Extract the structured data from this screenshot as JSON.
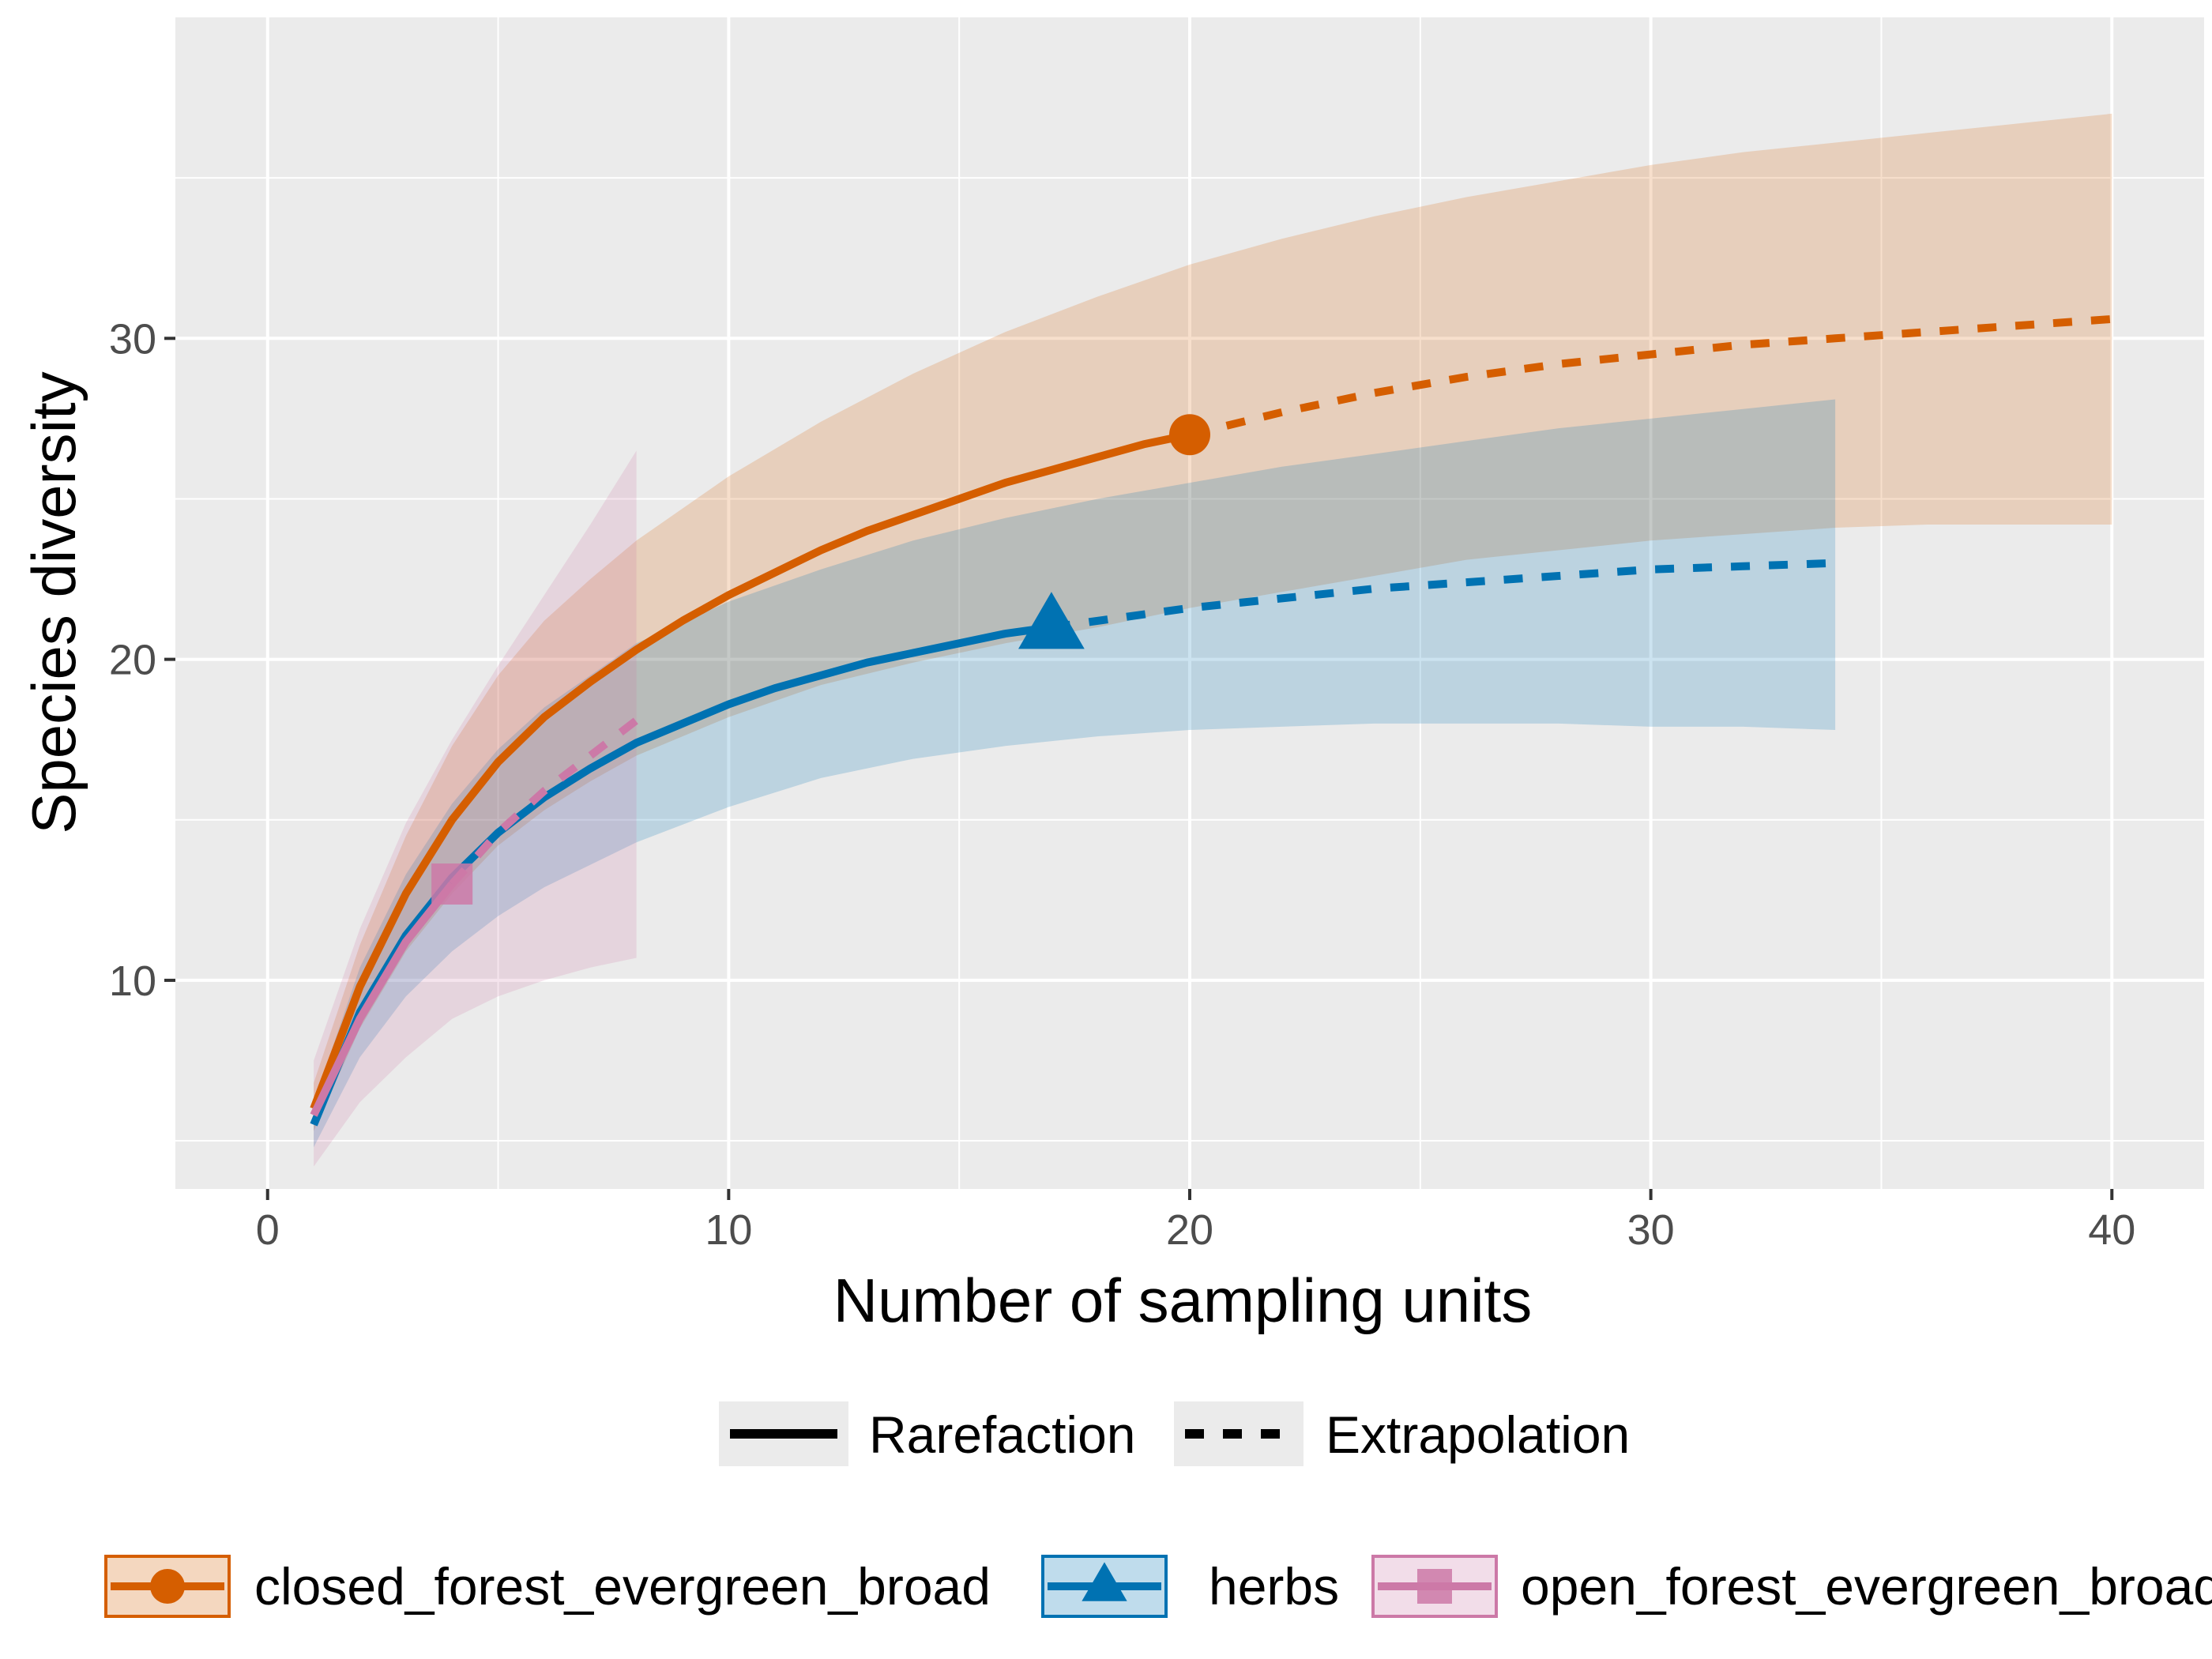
{
  "chart_data": {
    "type": "line",
    "title": "",
    "xlabel": "Number of sampling units",
    "ylabel": "Species diversity",
    "xlim": [
      -2,
      42
    ],
    "ylim": [
      3.5,
      40
    ],
    "x_ticks": [
      0,
      10,
      20,
      30,
      40
    ],
    "y_ticks": [
      10,
      20,
      30
    ],
    "grid": true,
    "panel_background": "#ebebeb",
    "legend_position": "bottom",
    "linetype_legend": [
      {
        "label": "Rarefaction",
        "linetype": "solid"
      },
      {
        "label": "Extrapolation",
        "linetype": "dashed"
      }
    ],
    "series": [
      {
        "name": "closed_forest_evergreen_broad",
        "color": "#D55E00",
        "shape": "circle",
        "reference": {
          "x": 20,
          "y": 27
        },
        "rarefaction": {
          "x": [
            1,
            2,
            3,
            4,
            5,
            6,
            7,
            8,
            9,
            10,
            11,
            12,
            13,
            14,
            15,
            16,
            17,
            18,
            19,
            20
          ],
          "y": [
            6.0,
            9.8,
            12.7,
            15.0,
            16.8,
            18.2,
            19.3,
            20.3,
            21.2,
            22.0,
            22.7,
            23.4,
            24.0,
            24.5,
            25.0,
            25.5,
            25.9,
            26.3,
            26.7,
            27.0
          ]
        },
        "extrapolation": {
          "x": [
            20,
            22,
            24,
            26,
            28,
            30,
            32,
            34,
            36,
            38,
            40
          ],
          "y": [
            27.0,
            27.7,
            28.3,
            28.8,
            29.2,
            29.5,
            29.8,
            30.0,
            30.2,
            30.4,
            30.6
          ]
        },
        "ci_x": [
          1,
          2,
          3,
          4,
          5,
          6,
          7,
          8,
          10,
          12,
          14,
          16,
          18,
          20,
          22,
          24,
          26,
          28,
          30,
          32,
          34,
          36,
          38,
          40
        ],
        "ci_lower": [
          5.3,
          8.5,
          10.9,
          12.7,
          14.2,
          15.3,
          16.2,
          17.0,
          18.2,
          19.2,
          19.9,
          20.5,
          21.0,
          21.6,
          22.1,
          22.6,
          23.1,
          23.4,
          23.7,
          23.9,
          24.1,
          24.2,
          24.2,
          24.2
        ],
        "ci_upper": [
          6.8,
          11.1,
          14.5,
          17.3,
          19.5,
          21.2,
          22.5,
          23.7,
          25.7,
          27.4,
          28.9,
          30.2,
          31.3,
          32.3,
          33.1,
          33.8,
          34.4,
          34.9,
          35.4,
          35.8,
          36.1,
          36.4,
          36.7,
          37.0
        ]
      },
      {
        "name": "herbs",
        "color": "#0072B2",
        "shape": "triangle",
        "reference": {
          "x": 17,
          "y": 21
        },
        "rarefaction": {
          "x": [
            1,
            2,
            3,
            4,
            5,
            6,
            7,
            8,
            9,
            10,
            11,
            12,
            13,
            14,
            15,
            16,
            17
          ],
          "y": [
            5.5,
            9.0,
            11.4,
            13.2,
            14.6,
            15.7,
            16.6,
            17.4,
            18.0,
            18.6,
            19.1,
            19.5,
            19.9,
            20.2,
            20.5,
            20.8,
            21.0
          ]
        },
        "extrapolation": {
          "x": [
            17,
            20,
            22,
            24,
            26,
            28,
            30,
            32,
            34
          ],
          "y": [
            21.0,
            21.6,
            21.9,
            22.2,
            22.4,
            22.6,
            22.8,
            22.9,
            23.0
          ]
        },
        "ci_x": [
          1,
          2,
          3,
          4,
          5,
          6,
          8,
          10,
          12,
          14,
          16,
          18,
          20,
          22,
          24,
          26,
          28,
          30,
          32,
          34
        ],
        "ci_lower": [
          4.8,
          7.6,
          9.5,
          10.9,
          12.0,
          12.9,
          14.3,
          15.4,
          16.3,
          16.9,
          17.3,
          17.6,
          17.8,
          17.9,
          18.0,
          18.0,
          18.0,
          17.9,
          17.9,
          17.8
        ],
        "ci_upper": [
          6.2,
          10.4,
          13.3,
          15.5,
          17.2,
          18.5,
          20.5,
          21.8,
          22.8,
          23.7,
          24.4,
          25.0,
          25.5,
          26.0,
          26.4,
          26.8,
          27.2,
          27.5,
          27.8,
          28.1
        ]
      },
      {
        "name": "open_forest_evergreen_broad",
        "color": "#CC79A7",
        "shape": "square",
        "reference": {
          "x": 4,
          "y": 13
        },
        "rarefaction": {
          "x": [
            1,
            2,
            3,
            4
          ],
          "y": [
            5.8,
            8.8,
            11.2,
            13.0
          ]
        },
        "extrapolation": {
          "x": [
            4,
            5,
            6,
            7,
            8
          ],
          "y": [
            13.0,
            14.6,
            15.9,
            17.0,
            18.1
          ]
        },
        "ci_x": [
          1,
          2,
          3,
          4,
          5,
          6,
          7,
          8
        ],
        "ci_lower": [
          4.2,
          6.2,
          7.6,
          8.8,
          9.5,
          10.0,
          10.4,
          10.7
        ],
        "ci_upper": [
          7.5,
          11.6,
          14.9,
          17.5,
          19.8,
          22.0,
          24.2,
          26.5
        ]
      }
    ]
  }
}
